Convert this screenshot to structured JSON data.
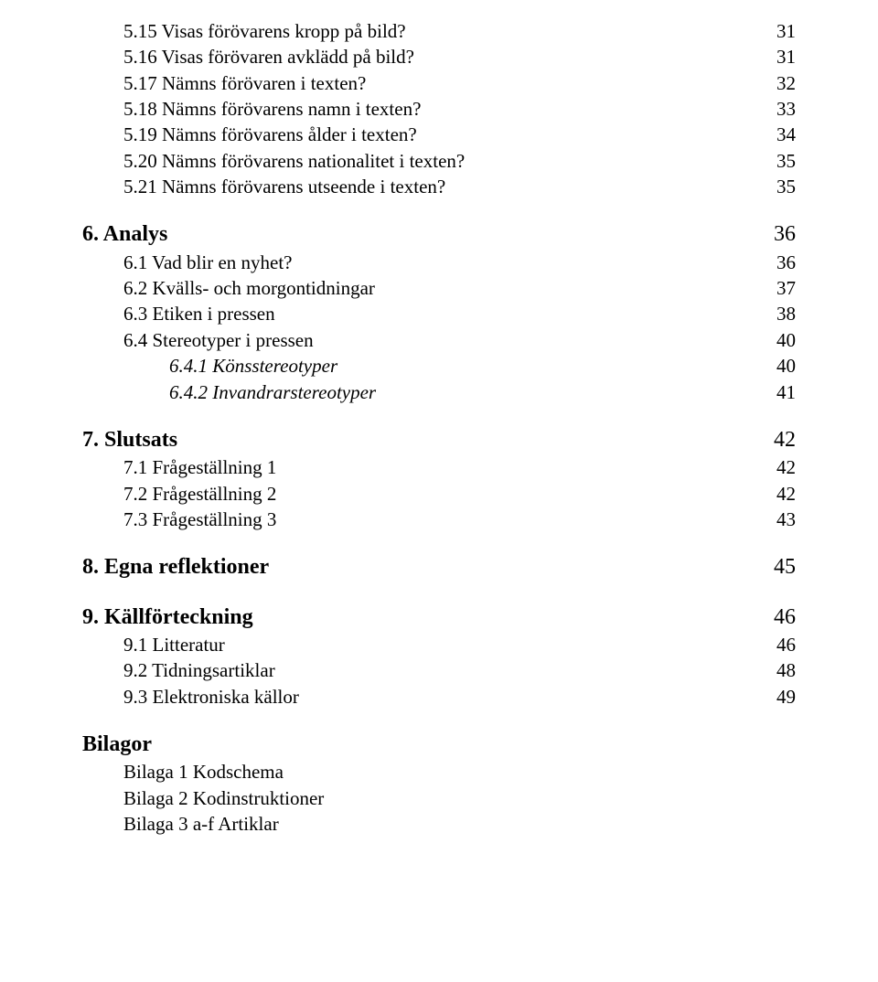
{
  "toc": {
    "items5": [
      {
        "label": "5.15 Visas förövarens kropp på bild?",
        "page": "31"
      },
      {
        "label": "5.16 Visas förövaren avklädd på bild?",
        "page": "31"
      },
      {
        "label": "5.17 Nämns förövaren i texten?",
        "page": "32"
      },
      {
        "label": "5.18 Nämns förövarens namn i texten?",
        "page": "33"
      },
      {
        "label": "5.19 Nämns förövarens ålder i texten?",
        "page": "34"
      },
      {
        "label": "5.20 Nämns förövarens nationalitet i texten?",
        "page": "35"
      },
      {
        "label": "5.21 Nämns förövarens utseende i texten?",
        "page": "35"
      }
    ],
    "section6": {
      "label": "6. Analys",
      "page": "36"
    },
    "items6": [
      {
        "label": "6.1 Vad blir en nyhet?",
        "page": "36"
      },
      {
        "label": "6.2 Kvälls- och morgontidningar",
        "page": "37"
      },
      {
        "label": "6.3 Etiken i pressen",
        "page": "38"
      },
      {
        "label": "6.4 Stereotyper i pressen",
        "page": "40"
      }
    ],
    "items6sub": [
      {
        "label": "6.4.1 Könsstereotyper",
        "page": "40"
      },
      {
        "label": "6.4.2 Invandrarstereotyper",
        "page": "41"
      }
    ],
    "section7": {
      "label": "7. Slutsats",
      "page": "42"
    },
    "items7": [
      {
        "label": "7.1 Frågeställning 1",
        "page": "42"
      },
      {
        "label": "7.2 Frågeställning 2",
        "page": "42"
      },
      {
        "label": "7.3 Frågeställning 3",
        "page": "43"
      }
    ],
    "section8": {
      "label": "8. Egna reflektioner",
      "page": "45"
    },
    "section9": {
      "label": "9. Källförteckning",
      "page": "46"
    },
    "items9": [
      {
        "label": "9.1 Litteratur",
        "page": "46"
      },
      {
        "label": "9.2 Tidningsartiklar",
        "page": "48"
      },
      {
        "label": "9.3 Elektroniska källor",
        "page": "49"
      }
    ],
    "bilagor": {
      "label": "Bilagor"
    },
    "bilagorItems": [
      {
        "label": "Bilaga 1 Kodschema"
      },
      {
        "label": "Bilaga 2 Kodinstruktioner"
      },
      {
        "label": "Bilaga 3 a-f Artiklar"
      }
    ]
  }
}
